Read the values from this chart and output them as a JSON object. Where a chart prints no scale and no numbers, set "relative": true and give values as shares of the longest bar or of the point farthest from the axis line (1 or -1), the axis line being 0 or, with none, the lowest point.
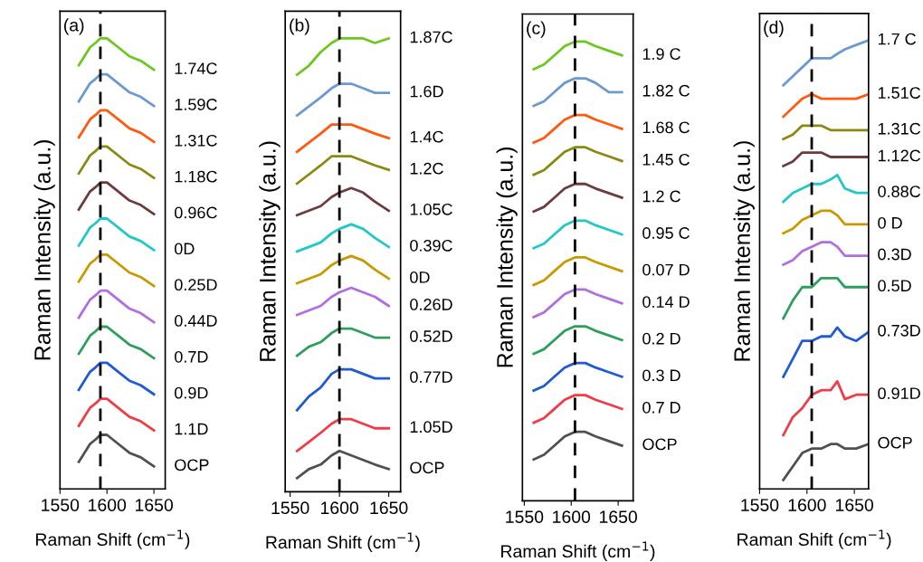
{
  "chart_data": [
    {
      "type": "line",
      "relative": true,
      "xlabel": "Raman Shift (cm$^{−1}$)",
      "ylabel": "Raman Intensity (a.u.)",
      "annotations": [
        "(a)"
      ],
      "xlim": [
        1550,
        1662
      ],
      "xticks": [
        1550,
        1600,
        1650
      ],
      "grid": false,
      "legend": false,
      "marker": "none",
      "line_style": "solid",
      "x": [
        1570,
        1576,
        1582,
        1588,
        1593,
        1600,
        1612,
        1624,
        1636,
        1650
      ],
      "ref_lines": [
        {
          "axis": "x",
          "value": 1593,
          "color": "#000000",
          "line_style": "dashed"
        }
      ],
      "series": [
        {
          "name": "OCP",
          "color": "#505050",
          "values": [
            0.06,
            0.08,
            0.1,
            0.11,
            0.12,
            0.12,
            0.1,
            0.08,
            0.07,
            0.05
          ]
        },
        {
          "name": "1.1D",
          "color": "#f03c46",
          "values": [
            0.14,
            0.16,
            0.18,
            0.19,
            0.2,
            0.2,
            0.18,
            0.16,
            0.15,
            0.13
          ]
        },
        {
          "name": "0.9D",
          "color": "#1f5bd6",
          "values": [
            0.22,
            0.24,
            0.26,
            0.27,
            0.28,
            0.28,
            0.26,
            0.24,
            0.23,
            0.21
          ]
        },
        {
          "name": "0.7D",
          "color": "#2ca05a",
          "values": [
            0.3,
            0.32,
            0.34,
            0.35,
            0.36,
            0.36,
            0.34,
            0.32,
            0.31,
            0.29
          ]
        },
        {
          "name": "0.44D",
          "color": "#b06ee0",
          "values": [
            0.38,
            0.4,
            0.42,
            0.43,
            0.44,
            0.44,
            0.42,
            0.4,
            0.39,
            0.37
          ]
        },
        {
          "name": "0.25D",
          "color": "#c89a00",
          "values": [
            0.46,
            0.48,
            0.5,
            0.51,
            0.52,
            0.52,
            0.5,
            0.48,
            0.47,
            0.45
          ]
        },
        {
          "name": "0D",
          "color": "#20c8c8",
          "values": [
            0.54,
            0.56,
            0.58,
            0.59,
            0.6,
            0.6,
            0.58,
            0.56,
            0.55,
            0.53
          ]
        },
        {
          "name": "0.96C",
          "color": "#6e3c3c",
          "values": [
            0.62,
            0.64,
            0.66,
            0.67,
            0.68,
            0.68,
            0.66,
            0.64,
            0.63,
            0.61
          ]
        },
        {
          "name": "1.18C",
          "color": "#8a8a10",
          "values": [
            0.7,
            0.72,
            0.74,
            0.75,
            0.76,
            0.76,
            0.74,
            0.72,
            0.71,
            0.69
          ]
        },
        {
          "name": "1.31C",
          "color": "#ff5a10",
          "values": [
            0.78,
            0.8,
            0.82,
            0.83,
            0.84,
            0.84,
            0.82,
            0.8,
            0.79,
            0.77
          ]
        },
        {
          "name": "1.59C",
          "color": "#6a9ad0",
          "values": [
            0.86,
            0.88,
            0.9,
            0.91,
            0.92,
            0.92,
            0.9,
            0.88,
            0.87,
            0.85
          ]
        },
        {
          "name": "1.74C",
          "color": "#6cc81e",
          "values": [
            0.94,
            0.96,
            0.98,
            0.99,
            1.0,
            1.0,
            0.98,
            0.96,
            0.95,
            0.93
          ]
        }
      ]
    },
    {
      "type": "line",
      "relative": true,
      "xlabel": "Raman Shift (cm$^{−1}$)",
      "ylabel": "Raman Intensity (a.u.)",
      "annotations": [
        "(b)"
      ],
      "xlim": [
        1545,
        1662
      ],
      "xticks": [
        1550,
        1600,
        1650
      ],
      "grid": false,
      "legend": false,
      "marker": "none",
      "line_style": "solid",
      "x": [
        1557,
        1569,
        1581,
        1592,
        1600,
        1612,
        1624,
        1636,
        1650
      ],
      "ref_lines": [
        {
          "axis": "x",
          "value": 1600,
          "color": "#000000",
          "line_style": "dashed"
        }
      ],
      "series": [
        {
          "name": "OCP",
          "color": "#505050",
          "values": [
            0.03,
            0.05,
            0.06,
            0.08,
            0.09,
            0.08,
            0.07,
            0.06,
            0.05
          ]
        },
        {
          "name": "1.05D",
          "color": "#f03c46",
          "values": [
            0.09,
            0.11,
            0.13,
            0.15,
            0.16,
            0.16,
            0.15,
            0.14,
            0.14
          ]
        },
        {
          "name": "0.77D",
          "color": "#1f5bd6",
          "values": [
            0.18,
            0.21,
            0.23,
            0.26,
            0.27,
            0.27,
            0.26,
            0.25,
            0.25
          ]
        },
        {
          "name": "0.52D",
          "color": "#2ca05a",
          "values": [
            0.3,
            0.32,
            0.33,
            0.35,
            0.36,
            0.36,
            0.35,
            0.34,
            0.34
          ]
        },
        {
          "name": "0.26D",
          "color": "#b06ee0",
          "values": [
            0.39,
            0.4,
            0.41,
            0.43,
            0.44,
            0.45,
            0.44,
            0.43,
            0.41
          ]
        },
        {
          "name": "0D",
          "color": "#c89a00",
          "values": [
            0.46,
            0.47,
            0.48,
            0.5,
            0.51,
            0.52,
            0.51,
            0.49,
            0.47
          ]
        },
        {
          "name": "0.39C",
          "color": "#20c8c8",
          "values": [
            0.53,
            0.54,
            0.55,
            0.57,
            0.58,
            0.59,
            0.58,
            0.56,
            0.54
          ]
        },
        {
          "name": "1.05C",
          "color": "#6e3c3c",
          "values": [
            0.61,
            0.62,
            0.63,
            0.65,
            0.66,
            0.67,
            0.66,
            0.64,
            0.62
          ]
        },
        {
          "name": "1.2C",
          "color": "#8a8a10",
          "values": [
            0.68,
            0.7,
            0.72,
            0.74,
            0.74,
            0.74,
            0.73,
            0.72,
            0.71
          ]
        },
        {
          "name": "1.4C",
          "color": "#ff5a10",
          "values": [
            0.75,
            0.77,
            0.79,
            0.81,
            0.81,
            0.81,
            0.8,
            0.79,
            0.78
          ]
        },
        {
          "name": "1.6D",
          "color": "#6a9ad0",
          "values": [
            0.83,
            0.85,
            0.87,
            0.89,
            0.9,
            0.9,
            0.89,
            0.88,
            0.88
          ]
        },
        {
          "name": "1.87C",
          "color": "#6cc81e",
          "values": [
            0.92,
            0.94,
            0.97,
            0.99,
            1.0,
            1.0,
            1.0,
            0.99,
            1.0
          ]
        }
      ]
    },
    {
      "type": "line",
      "relative": true,
      "xlabel": "Raman Shift (cm$^{−1}$)",
      "ylabel": "Raman Intensity (a.u.)",
      "annotations": [
        "(c)"
      ],
      "xlim": [
        1548,
        1666
      ],
      "xticks": [
        1550,
        1600,
        1650
      ],
      "grid": false,
      "legend": false,
      "marker": "none",
      "line_style": "solid",
      "x": [
        1560,
        1571,
        1582,
        1593,
        1604,
        1615,
        1626,
        1640,
        1654
      ],
      "ref_lines": [
        {
          "axis": "x",
          "value": 1604,
          "color": "#000000",
          "line_style": "dashed"
        }
      ],
      "series": [
        {
          "name": "OCP",
          "color": "#505050",
          "values": [
            0.09,
            0.1,
            0.12,
            0.14,
            0.15,
            0.15,
            0.14,
            0.13,
            0.12
          ]
        },
        {
          "name": "0.7 D",
          "color": "#f03c46",
          "values": [
            0.17,
            0.18,
            0.2,
            0.22,
            0.23,
            0.23,
            0.22,
            0.21,
            0.2
          ]
        },
        {
          "name": "0.3 D",
          "color": "#1f5bd6",
          "values": [
            0.24,
            0.25,
            0.27,
            0.29,
            0.3,
            0.3,
            0.29,
            0.28,
            0.27
          ]
        },
        {
          "name": "0.2 D",
          "color": "#2ca05a",
          "values": [
            0.32,
            0.33,
            0.35,
            0.37,
            0.38,
            0.38,
            0.37,
            0.36,
            0.35
          ]
        },
        {
          "name": "0.14 D",
          "color": "#b06ee0",
          "values": [
            0.4,
            0.41,
            0.43,
            0.45,
            0.46,
            0.46,
            0.45,
            0.44,
            0.43
          ]
        },
        {
          "name": "0.07 D",
          "color": "#c89a00",
          "values": [
            0.47,
            0.48,
            0.5,
            0.52,
            0.53,
            0.53,
            0.52,
            0.51,
            0.5
          ]
        },
        {
          "name": "0.95 C",
          "color": "#20c8c8",
          "values": [
            0.55,
            0.56,
            0.58,
            0.6,
            0.61,
            0.61,
            0.6,
            0.59,
            0.58
          ]
        },
        {
          "name": "1.2 C",
          "color": "#6e3c3c",
          "values": [
            0.63,
            0.64,
            0.66,
            0.68,
            0.69,
            0.69,
            0.68,
            0.67,
            0.66
          ]
        },
        {
          "name": "1.45 C",
          "color": "#8a8a10",
          "values": [
            0.71,
            0.72,
            0.74,
            0.76,
            0.77,
            0.77,
            0.76,
            0.75,
            0.74
          ]
        },
        {
          "name": "1.68 C",
          "color": "#ff5a10",
          "values": [
            0.78,
            0.79,
            0.81,
            0.83,
            0.84,
            0.84,
            0.83,
            0.82,
            0.81
          ]
        },
        {
          "name": "1.82 C",
          "color": "#6a9ad0",
          "values": [
            0.86,
            0.87,
            0.89,
            0.91,
            0.92,
            0.92,
            0.91,
            0.89,
            0.89
          ]
        },
        {
          "name": "1.9 C",
          "color": "#6cc81e",
          "values": [
            0.94,
            0.95,
            0.97,
            0.99,
            1.0,
            1.0,
            0.99,
            0.98,
            0.97
          ]
        }
      ]
    },
    {
      "type": "line",
      "relative": true,
      "xlabel": "Raman Shift (cm$^{−1}$)",
      "ylabel": "Raman Intensity (a.u.)",
      "annotations": [
        "(d)"
      ],
      "xlim": [
        1550,
        1665
      ],
      "xticks": [
        1550,
        1600,
        1650
      ],
      "grid": false,
      "legend": false,
      "marker": "none",
      "line_style": "solid",
      "x": [
        1575,
        1585,
        1595,
        1605,
        1615,
        1625,
        1632,
        1640,
        1652,
        1665
      ],
      "ref_lines": [
        {
          "axis": "x",
          "value": 1605,
          "color": "#000000",
          "line_style": "dashed"
        }
      ],
      "series": [
        {
          "name": "OCP",
          "color": "#505050",
          "values": [
            0.02,
            0.05,
            0.08,
            0.09,
            0.09,
            0.1,
            0.1,
            0.09,
            0.09,
            0.1
          ]
        },
        {
          "name": "0.91D",
          "color": "#f03c46",
          "values": [
            0.12,
            0.16,
            0.18,
            0.21,
            0.22,
            0.22,
            0.24,
            0.2,
            0.21,
            0.21
          ]
        },
        {
          "name": "0.73D",
          "color": "#1f5bd6",
          "values": [
            0.25,
            0.29,
            0.33,
            0.33,
            0.34,
            0.34,
            0.36,
            0.34,
            0.33,
            0.35
          ]
        },
        {
          "name": "0.5D",
          "color": "#2ca05a",
          "values": [
            0.38,
            0.42,
            0.45,
            0.45,
            0.47,
            0.47,
            0.47,
            0.45,
            0.45,
            0.45
          ]
        },
        {
          "name": "0.3D",
          "color": "#b06ee0",
          "values": [
            0.5,
            0.51,
            0.53,
            0.54,
            0.55,
            0.55,
            0.54,
            0.52,
            0.52,
            0.52
          ]
        },
        {
          "name": "0 D",
          "color": "#c89a00",
          "values": [
            0.57,
            0.58,
            0.6,
            0.61,
            0.62,
            0.62,
            0.61,
            0.59,
            0.59,
            0.59
          ]
        },
        {
          "name": "0.88C",
          "color": "#20c8c8",
          "values": [
            0.64,
            0.66,
            0.67,
            0.68,
            0.68,
            0.69,
            0.7,
            0.67,
            0.66,
            0.66
          ]
        },
        {
          "name": "1.12C",
          "color": "#6e3c3c",
          "values": [
            0.72,
            0.73,
            0.75,
            0.75,
            0.75,
            0.74,
            0.74,
            0.74,
            0.74,
            0.74
          ]
        },
        {
          "name": "1.31C",
          "color": "#8a8a10",
          "values": [
            0.78,
            0.79,
            0.81,
            0.81,
            0.81,
            0.8,
            0.8,
            0.8,
            0.8,
            0.8
          ]
        },
        {
          "name": "1.51C",
          "color": "#ff5a10",
          "values": [
            0.83,
            0.85,
            0.87,
            0.88,
            0.87,
            0.87,
            0.87,
            0.87,
            0.87,
            0.88
          ]
        },
        {
          "name": "1.7 C",
          "color": "#6a9ad0",
          "values": [
            0.9,
            0.92,
            0.94,
            0.96,
            0.96,
            0.96,
            0.97,
            0.98,
            0.99,
            1.0
          ]
        }
      ]
    }
  ]
}
